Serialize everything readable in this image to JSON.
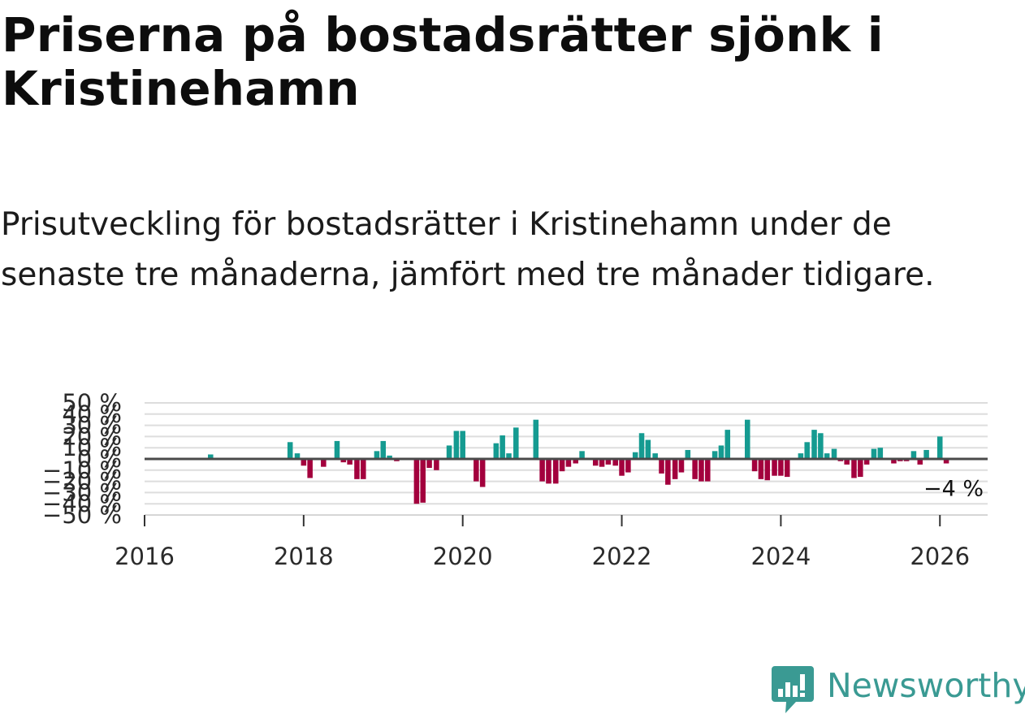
{
  "header": {
    "title": "Priserna på bostadsrätter sjönk i Kristinehamn",
    "subtitle": "Prisutveckling för bostadsrätter i Kristinehamn under de senaste tre månaderna, jämfört med tre månader tidigare."
  },
  "brand": {
    "name": "Newsworthy",
    "color": "#3a9a93"
  },
  "chart_data": {
    "type": "bar",
    "title": "Priserna på bostadsrätter sjönk i Kristinehamn",
    "xlabel": "",
    "ylabel": "",
    "xlim": [
      2016,
      2026.6
    ],
    "ylim": [
      -50,
      50
    ],
    "yticks": [
      50,
      40,
      30,
      20,
      10,
      0,
      -10,
      -20,
      -30,
      -40,
      -50
    ],
    "ytick_labels": [
      "50 %",
      "40 %",
      "30 %",
      "20 %",
      "10 %",
      "0 %",
      "−10 %",
      "−20 %",
      "−30 %",
      "−40 %",
      "−50 %"
    ],
    "xticks": [
      2016,
      2018,
      2020,
      2022,
      2024,
      2026
    ],
    "xtick_labels": [
      "2016",
      "2018",
      "2020",
      "2022",
      "2024",
      "2026"
    ],
    "grid": true,
    "colors": {
      "positive": "#159b91",
      "negative": "#a3003d",
      "zero_line": "#4a4a4a",
      "grid": "#dddddd"
    },
    "annotation": {
      "text": "−4 %",
      "x": 2026.1,
      "value": -4
    },
    "series": [
      {
        "name": "Prisutveckling",
        "x": [
          2016.83,
          2017.83,
          2017.92,
          2018.0,
          2018.08,
          2018.25,
          2018.42,
          2018.5,
          2018.58,
          2018.67,
          2018.75,
          2018.92,
          2019.0,
          2019.08,
          2019.17,
          2019.42,
          2019.5,
          2019.58,
          2019.67,
          2019.83,
          2019.92,
          2020.0,
          2020.17,
          2020.25,
          2020.42,
          2020.5,
          2020.58,
          2020.67,
          2020.92,
          2021.0,
          2021.08,
          2021.17,
          2021.25,
          2021.33,
          2021.42,
          2021.5,
          2021.67,
          2021.75,
          2021.83,
          2021.92,
          2022.0,
          2022.08,
          2022.17,
          2022.25,
          2022.33,
          2022.42,
          2022.5,
          2022.58,
          2022.67,
          2022.75,
          2022.83,
          2022.92,
          2023.0,
          2023.08,
          2023.17,
          2023.25,
          2023.33,
          2023.58,
          2023.67,
          2023.75,
          2023.83,
          2023.92,
          2024.0,
          2024.08,
          2024.25,
          2024.33,
          2024.42,
          2024.5,
          2024.58,
          2024.67,
          2024.75,
          2024.83,
          2024.92,
          2025.0,
          2025.08,
          2025.17,
          2025.25,
          2025.42,
          2025.5,
          2025.58,
          2025.67,
          2025.75,
          2025.83,
          2025.92,
          2026.0,
          2026.08
        ],
        "values": [
          4,
          15,
          5,
          -6,
          -17,
          -7,
          16,
          -3,
          -5,
          -18,
          -18,
          7,
          16,
          3,
          -2,
          -40,
          -39,
          -8,
          -10,
          12,
          25,
          25,
          -20,
          -25,
          14,
          21,
          5,
          28,
          35,
          -20,
          -22,
          -22,
          -11,
          -7,
          -4,
          7,
          -6,
          -7,
          -5,
          -6,
          -15,
          -12,
          6,
          23,
          17,
          5,
          -13,
          -23,
          -18,
          -12,
          8,
          -18,
          -20,
          -20,
          7,
          12,
          26,
          35,
          -11,
          -18,
          -19,
          -15,
          -15,
          -16,
          5,
          15,
          26,
          23,
          5,
          9,
          -2,
          -5,
          -17,
          -16,
          -5,
          9,
          10,
          -4,
          -2,
          -2,
          7,
          -5,
          8,
          -1,
          20,
          -4
        ]
      }
    ]
  }
}
